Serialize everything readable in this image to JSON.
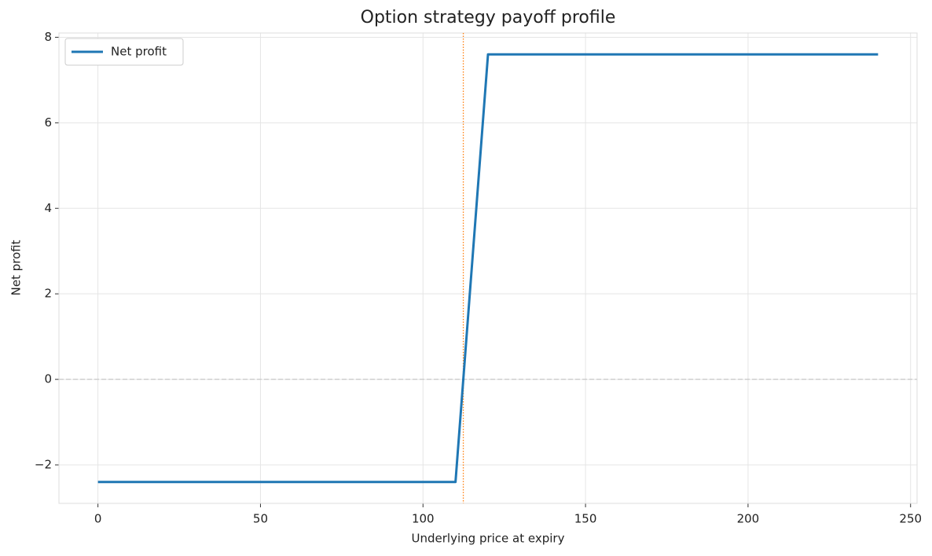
{
  "chart_data": {
    "type": "line",
    "title": "Option strategy payoff profile",
    "x_label": "Underlying price at expiry",
    "y_label": "Net profit",
    "x": [
      0,
      110,
      120,
      240
    ],
    "series": [
      {
        "name": "Net profit",
        "color": "#1f77b4",
        "values": [
          -2.4,
          -2.4,
          7.6,
          7.6
        ]
      }
    ],
    "xlim": [
      -12,
      252
    ],
    "xticks": [
      0,
      50,
      100,
      150,
      200,
      250
    ],
    "ylim": [
      -2.9,
      8.1
    ],
    "yticks": [
      {
        "value": -2,
        "label": "−2"
      },
      0,
      2,
      4,
      6,
      8
    ],
    "grid": true,
    "legend": "upper left",
    "reference_lines": [
      {
        "axis": "y",
        "value": 0,
        "color": "#cccccc",
        "style": "dashed"
      },
      {
        "axis": "x",
        "value": 112.4,
        "color": "#ff7f0e",
        "style": "dotted"
      }
    ]
  }
}
